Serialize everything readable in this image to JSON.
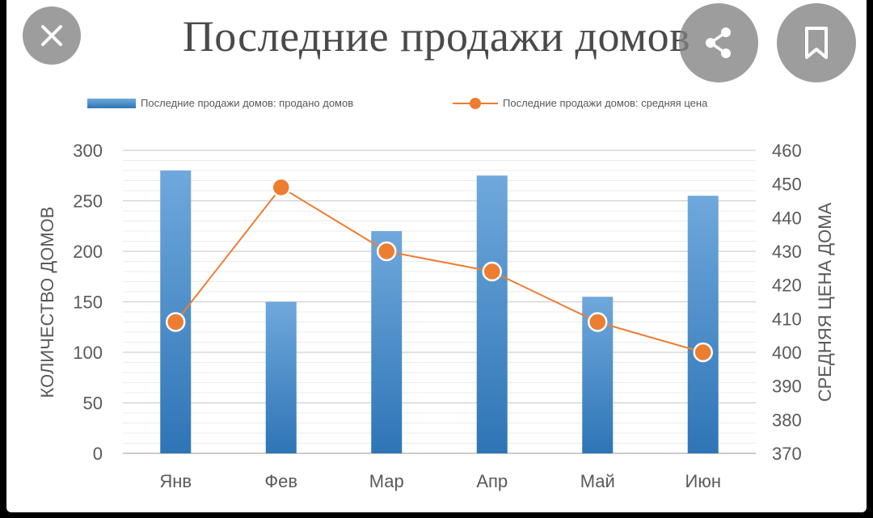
{
  "chart_data": {
    "type": "bar",
    "title": "Последние продажи домов",
    "categories": [
      "Янв",
      "Фев",
      "Мар",
      "Апр",
      "Май",
      "Июн"
    ],
    "series": [
      {
        "name": "Последние продажи домов: продано домов",
        "type": "bar",
        "axis": "left",
        "values": [
          280,
          150,
          220,
          275,
          155,
          255
        ]
      },
      {
        "name": "Последние продажи домов: средняя цена",
        "type": "line",
        "axis": "right",
        "values": [
          409,
          449,
          430,
          424,
          409,
          400
        ]
      }
    ],
    "ylabel": "КОЛИЧЕСТВО ДОМОВ",
    "ylabel_right": "СРЕДНЯЯ ЦЕНА ДОМА",
    "ylim": [
      0,
      300
    ],
    "ylim_right": [
      370,
      460
    ],
    "yticks": [
      0,
      50,
      100,
      150,
      200,
      250,
      300
    ],
    "yticks_right": [
      370,
      380,
      390,
      400,
      410,
      420,
      430,
      440,
      450,
      460
    ],
    "grid": true,
    "legend_position": "top",
    "colors": {
      "bar_top": "#6fa8dc",
      "bar_bottom": "#2e75b6",
      "line": "#ed7d31",
      "grid": "#d9d9d9",
      "text": "#595959"
    }
  },
  "overlay": {
    "close_icon": "close-icon",
    "share_icon": "share-icon",
    "bookmark_icon": "bookmark-icon"
  }
}
